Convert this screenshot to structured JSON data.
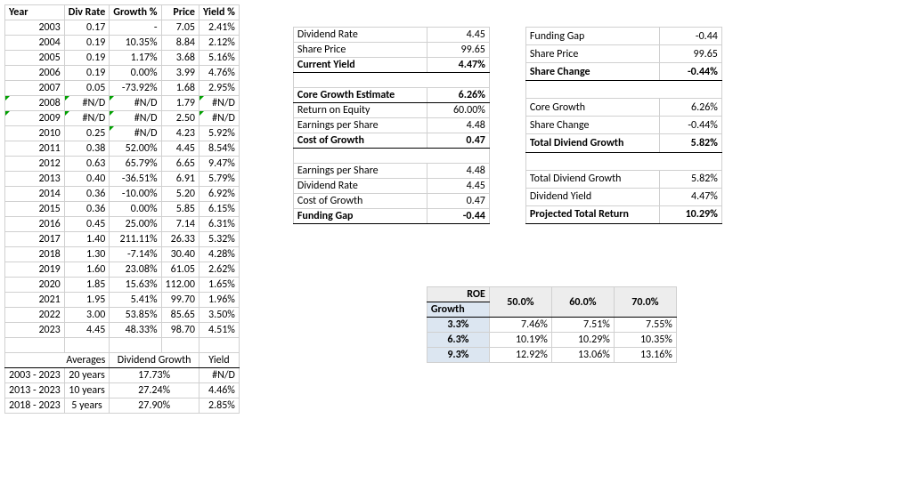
{
  "history": {
    "headers": [
      "Year",
      "Div Rate",
      "Growth %",
      "Price",
      "Yield %"
    ],
    "rows": [
      {
        "year": "2003",
        "div": "0.17",
        "growth": "-",
        "price": "7.05",
        "yield": "2.41%"
      },
      {
        "year": "2004",
        "div": "0.19",
        "growth": "10.35%",
        "price": "8.84",
        "yield": "2.12%"
      },
      {
        "year": "2005",
        "div": "0.19",
        "growth": "1.17%",
        "price": "3.68",
        "yield": "5.16%"
      },
      {
        "year": "2006",
        "div": "0.19",
        "growth": "0.00%",
        "price": "3.99",
        "yield": "4.76%"
      },
      {
        "year": "2007",
        "div": "0.05",
        "growth": "-73.92%",
        "price": "1.68",
        "yield": "2.95%"
      },
      {
        "year": "2008",
        "div": "#N/D",
        "growth": "#N/D",
        "price": "1.79",
        "yield": "#N/D",
        "err": true
      },
      {
        "year": "2009",
        "div": "#N/D",
        "growth": "#N/D",
        "price": "2.50",
        "yield": "#N/D",
        "err": true
      },
      {
        "year": "2010",
        "div": "0.25",
        "growth": "#N/D",
        "price": "4.23",
        "yield": "5.92%",
        "errGrowth": true
      },
      {
        "year": "2011",
        "div": "0.38",
        "growth": "52.00%",
        "price": "4.45",
        "yield": "8.54%"
      },
      {
        "year": "2012",
        "div": "0.63",
        "growth": "65.79%",
        "price": "6.65",
        "yield": "9.47%"
      },
      {
        "year": "2013",
        "div": "0.40",
        "growth": "-36.51%",
        "price": "6.91",
        "yield": "5.79%"
      },
      {
        "year": "2014",
        "div": "0.36",
        "growth": "-10.00%",
        "price": "5.20",
        "yield": "6.92%"
      },
      {
        "year": "2015",
        "div": "0.36",
        "growth": "0.00%",
        "price": "5.85",
        "yield": "6.15%"
      },
      {
        "year": "2016",
        "div": "0.45",
        "growth": "25.00%",
        "price": "7.14",
        "yield": "6.31%"
      },
      {
        "year": "2017",
        "div": "1.40",
        "growth": "211.11%",
        "price": "26.33",
        "yield": "5.32%"
      },
      {
        "year": "2018",
        "div": "1.30",
        "growth": "-7.14%",
        "price": "30.40",
        "yield": "4.28%"
      },
      {
        "year": "2019",
        "div": "1.60",
        "growth": "23.08%",
        "price": "61.05",
        "yield": "2.62%"
      },
      {
        "year": "2020",
        "div": "1.85",
        "growth": "15.63%",
        "price": "112.00",
        "yield": "1.65%"
      },
      {
        "year": "2021",
        "div": "1.95",
        "growth": "5.41%",
        "price": "99.70",
        "yield": "1.96%"
      },
      {
        "year": "2022",
        "div": "3.00",
        "growth": "53.85%",
        "price": "85.65",
        "yield": "3.50%"
      },
      {
        "year": "2023",
        "div": "4.45",
        "growth": "48.33%",
        "price": "98.70",
        "yield": "4.51%"
      }
    ],
    "avgHeader": {
      "a": "Averages",
      "b": "Dividend Growth",
      "c": "Yield"
    },
    "avgRows": [
      {
        "range": "2003 - 2023",
        "years": "20 years",
        "growth": "17.73%",
        "yield": "#N/D"
      },
      {
        "range": "2013 - 2023",
        "years": "10 years",
        "growth": "27.24%",
        "yield": "4.46%"
      },
      {
        "range": "2018 - 2023",
        "years": "5 years",
        "growth": "27.90%",
        "yield": "2.85%"
      }
    ]
  },
  "metricsLeft": [
    {
      "label": "Dividend Rate",
      "value": "4.45"
    },
    {
      "label": "Share Price",
      "value": "99.65"
    },
    {
      "label": "Current Yield",
      "value": "4.47%",
      "bold": true
    },
    {
      "empty": true
    },
    {
      "label": "Core Growth Estimate",
      "value": "6.26%",
      "bold": true,
      "top": true
    },
    {
      "label": "Return on Equity",
      "value": "60.00%"
    },
    {
      "label": "Earnings per Share",
      "value": "4.48"
    },
    {
      "label": "Cost of Growth",
      "value": "0.47",
      "bold": true
    },
    {
      "empty": true
    },
    {
      "label": "Earnings per Share",
      "value": "4.48",
      "top": true
    },
    {
      "label": "Dividend Rate",
      "value": "4.45"
    },
    {
      "label": "Cost of Growth",
      "value": "0.47"
    },
    {
      "label": "Funding Gap",
      "value": "-0.44",
      "bold": true
    }
  ],
  "metricsRight": [
    {
      "label": "Funding Gap",
      "value": "-0.44"
    },
    {
      "label": "Share Price",
      "value": "99.65"
    },
    {
      "label": "Share Change",
      "value": "-0.44%",
      "bold": true
    },
    {
      "empty": true
    },
    {
      "label": "Core Growth",
      "value": "6.26%",
      "top": true
    },
    {
      "label": "Share Change",
      "value": "-0.44%"
    },
    {
      "label": "Total Diviend Growth",
      "value": "5.82%",
      "bold": true
    },
    {
      "empty": true
    },
    {
      "label": "Total Diviend Growth",
      "value": "5.82%",
      "top": true
    },
    {
      "label": "Dividend Yield",
      "value": "4.47%"
    },
    {
      "label": "Projected Total Return",
      "value": "10.29%",
      "bold": true
    }
  ],
  "sens": {
    "cornerTop": "ROE",
    "cornerBottom": "Growth",
    "cols": [
      "50.0%",
      "60.0%",
      "70.0%"
    ],
    "rows": [
      {
        "h": "3.3%",
        "v": [
          "7.46%",
          "7.51%",
          "7.55%"
        ]
      },
      {
        "h": "6.3%",
        "v": [
          "10.19%",
          "10.29%",
          "10.35%"
        ]
      },
      {
        "h": "9.3%",
        "v": [
          "12.92%",
          "13.06%",
          "13.16%"
        ]
      }
    ]
  }
}
